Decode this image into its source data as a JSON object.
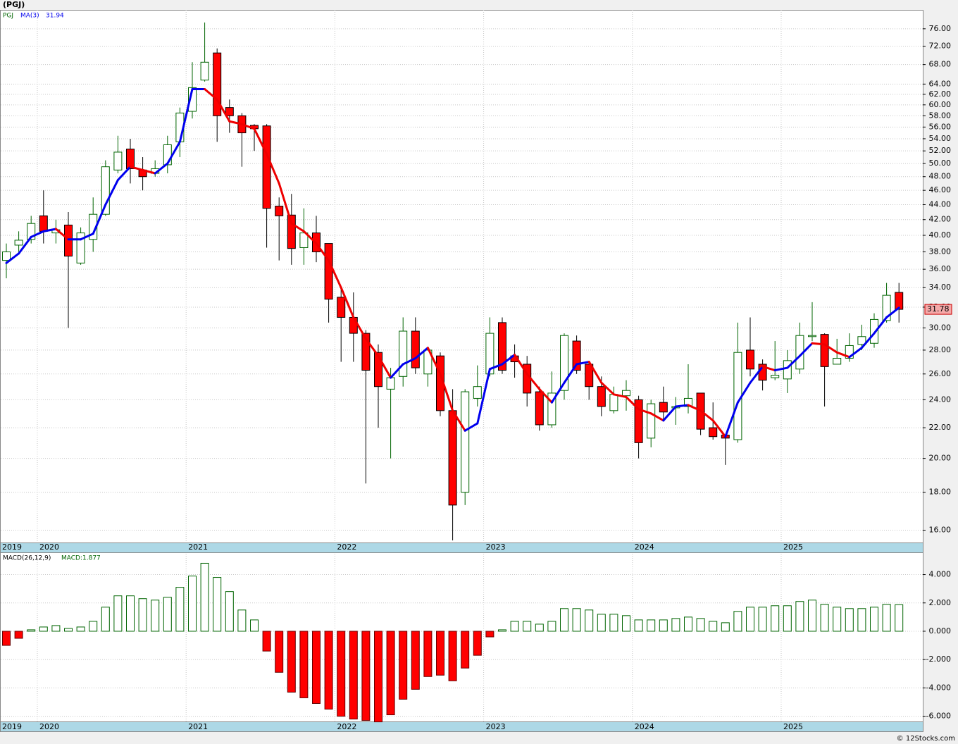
{
  "chart_data": [
    {
      "type": "candlestick",
      "title": "(PGJ)",
      "ticker": "PGJ",
      "categories": [
        "2019",
        null,
        null,
        "2020",
        null,
        null,
        null,
        null,
        null,
        null,
        null,
        null,
        null,
        null,
        null,
        "2021",
        null,
        null,
        null,
        null,
        null,
        null,
        null,
        null,
        null,
        null,
        null,
        "2022",
        null,
        null,
        null,
        null,
        null,
        null,
        null,
        null,
        null,
        null,
        null,
        "2023",
        null,
        null,
        null,
        null,
        null,
        null,
        null,
        null,
        null,
        null,
        null,
        "2024",
        null,
        null,
        null,
        null,
        null,
        null,
        null,
        null,
        null,
        null,
        null,
        "2025",
        null,
        null,
        null,
        null,
        null,
        null,
        null,
        null,
        null
      ],
      "open": [
        37,
        38.8,
        39.5,
        42.5,
        40.3,
        41.3,
        36.7,
        39.5,
        42.7,
        49,
        52.3,
        49,
        48.5,
        49.8,
        53.5,
        58.8,
        64.8,
        70.5,
        59.5,
        58,
        56.3,
        56.2,
        43.8,
        42.6,
        38.5,
        40.3,
        39,
        33,
        31,
        29.5,
        27.8,
        24.8,
        25.8,
        29.7,
        26,
        27.5,
        23.2,
        18,
        24.1,
        26,
        30.5,
        27.5,
        26.8,
        24.6,
        22.2,
        24.7,
        28.8,
        26.8,
        25,
        23.2,
        24.3,
        24,
        21.3,
        23.8,
        23.4,
        23.5,
        24.5,
        22,
        21.5,
        21.2,
        28,
        26.8,
        25.7,
        25.6,
        26.4,
        29.2,
        29.4,
        26.8,
        27.3,
        28.5,
        28.6,
        30.7,
        33.5
      ],
      "high": [
        39,
        40.5,
        42.5,
        46,
        42,
        43,
        41,
        45,
        50.5,
        54.5,
        54,
        51,
        50.5,
        54.5,
        59.5,
        68.5,
        77.5,
        71.5,
        61,
        58.5,
        56.5,
        56.5,
        45,
        45.5,
        43.5,
        42.5,
        39,
        34,
        33.5,
        29.8,
        28.5,
        26.5,
        31,
        31,
        28.2,
        27.8,
        24.8,
        24.8,
        26.7,
        31,
        31,
        28.5,
        27.5,
        25,
        26.2,
        29.5,
        29.3,
        27,
        25.8,
        25,
        25.5,
        24.3,
        24,
        25,
        24.2,
        26.8,
        24.5,
        23.8,
        21.5,
        30.5,
        31,
        27.2,
        28.8,
        28,
        30.5,
        32.5,
        29.5,
        29,
        29.5,
        30.3,
        31.4,
        34.5,
        34.5
      ],
      "low": [
        35,
        38,
        39,
        39,
        39,
        30,
        36.5,
        38,
        42.5,
        48.5,
        47,
        46,
        48,
        48.5,
        51,
        57.5,
        64.5,
        53.5,
        55,
        49.5,
        52,
        38.5,
        37,
        36.5,
        36.5,
        36.8,
        30.5,
        27,
        27,
        18.5,
        22,
        20,
        25,
        26,
        25,
        22.8,
        15.5,
        17.3,
        23.5,
        25.8,
        26,
        25.7,
        23.5,
        21.8,
        22,
        24,
        26,
        24,
        22.8,
        23,
        23.2,
        20,
        20.7,
        22.5,
        22.2,
        23,
        21.5,
        21.2,
        19.6,
        21,
        25.8,
        24.7,
        25.5,
        24.5,
        26,
        28.8,
        23.5,
        26.8,
        27,
        28,
        28.2,
        30.5,
        30.5
      ],
      "close": [
        38,
        39.4,
        41.5,
        40.5,
        40.7,
        37.5,
        40.3,
        42.7,
        49.5,
        51.8,
        49.2,
        48,
        49.2,
        53,
        58.5,
        63.3,
        68.5,
        58,
        58,
        55,
        55.7,
        43.5,
        42.5,
        38.4,
        40.3,
        38,
        32.8,
        31,
        29.5,
        26.3,
        25,
        25.7,
        29.7,
        26.5,
        28,
        23.2,
        17.3,
        24.6,
        25,
        29.5,
        26.3,
        27,
        24.5,
        22.2,
        24.5,
        29.3,
        26.3,
        25,
        23.5,
        24.4,
        24.7,
        21,
        23.7,
        23.1,
        23.5,
        24.1,
        21.9,
        21.4,
        21.3,
        27.8,
        26.4,
        25.5,
        25.9,
        27.1,
        29.3,
        29.3,
        26.6,
        27.3,
        28.4,
        29.2,
        30.8,
        33.2,
        31.78
      ],
      "up_color": "#006400",
      "down_color": "#ff0000",
      "ma": {
        "name": "MA(3)",
        "up_color": "#0000ee",
        "down_color": "#ee0000",
        "values": [
          36.7,
          37.8,
          39.8,
          40.5,
          40.8,
          39.5,
          39.5,
          40.2,
          44,
          47.5,
          49.5,
          49,
          48.5,
          50,
          53.5,
          63,
          63,
          61,
          57,
          56.5,
          55.7,
          51.5,
          47,
          41.5,
          40.5,
          39,
          37,
          34,
          31,
          29,
          27.5,
          25.7,
          26.8,
          27.3,
          28.2,
          26,
          23.2,
          21.8,
          22.3,
          26.4,
          26.8,
          27.6,
          26,
          24.8,
          23.8,
          25.3,
          26.8,
          27,
          25.3,
          24.4,
          24.2,
          23.3,
          23,
          22.5,
          23.5,
          23.6,
          23.2,
          22.5,
          21.4,
          23.8,
          25.3,
          26.6,
          26.3,
          26.5,
          27.5,
          28.6,
          28.5,
          27.8,
          27.4,
          28.2,
          29.5,
          31,
          31.94
        ]
      },
      "log": true,
      "ylim": [
        15.4,
        80.6
      ],
      "grid": true,
      "yticks": [
        {
          "value": 16,
          "label": "16.00"
        },
        {
          "value": 18,
          "label": "18.00"
        },
        {
          "value": 20,
          "label": "20.00"
        },
        {
          "value": 22,
          "label": "22.00"
        },
        {
          "value": 24,
          "label": "24.00"
        },
        {
          "value": 26,
          "label": "26.00"
        },
        {
          "value": 28,
          "label": "28.00"
        },
        {
          "value": 30,
          "label": "30.00"
        },
        {
          "value": 32,
          "label": "32.00"
        },
        {
          "value": 34,
          "label": "34.00"
        },
        {
          "value": 36,
          "label": "36.00"
        },
        {
          "value": 38,
          "label": "38.00"
        },
        {
          "value": 40,
          "label": "40.00"
        },
        {
          "value": 42,
          "label": "42.00"
        },
        {
          "value": 44,
          "label": "44.00"
        },
        {
          "value": 46,
          "label": "46.00"
        },
        {
          "value": 48,
          "label": "48.00"
        },
        {
          "value": 50,
          "label": "50.00"
        },
        {
          "value": 52,
          "label": "52.00"
        },
        {
          "value": 54,
          "label": "54.00"
        },
        {
          "value": 56,
          "label": "56.00"
        },
        {
          "value": 58,
          "label": "58.00"
        },
        {
          "value": 60,
          "label": "60.00"
        },
        {
          "value": 62,
          "label": "62.00"
        },
        {
          "value": 64,
          "label": "64.00"
        },
        {
          "value": 68,
          "label": "68.00"
        },
        {
          "value": 72,
          "label": "72.00"
        },
        {
          "value": 76,
          "label": "76.00"
        }
      ]
    },
    {
      "type": "bar",
      "name": "MACD(26,12,9)",
      "last_label": "MACD:1.877",
      "values": [
        -1.0,
        -0.5,
        0.1,
        0.3,
        0.4,
        0.2,
        0.3,
        0.7,
        1.7,
        2.5,
        2.5,
        2.3,
        2.2,
        2.4,
        3.1,
        3.9,
        4.8,
        3.8,
        2.8,
        1.5,
        0.8,
        -1.4,
        -2.9,
        -4.3,
        -4.7,
        -5.1,
        -5.5,
        -6.0,
        -6.2,
        -6.3,
        -6.4,
        -5.9,
        -4.8,
        -4.1,
        -3.2,
        -3.1,
        -3.5,
        -2.6,
        -1.7,
        -0.4,
        0.1,
        0.7,
        0.7,
        0.5,
        0.7,
        1.6,
        1.6,
        1.5,
        1.2,
        1.2,
        1.1,
        0.8,
        0.8,
        0.8,
        0.9,
        1.0,
        0.9,
        0.7,
        0.6,
        1.4,
        1.7,
        1.7,
        1.8,
        1.8,
        2.1,
        2.2,
        1.9,
        1.7,
        1.6,
        1.6,
        1.7,
        1.9,
        1.877
      ],
      "pos_color": "#006400",
      "neg_color": "#ff0000",
      "ylim": [
        -6.37,
        5.47
      ],
      "grid": true,
      "yticks": [
        {
          "value": 4,
          "label": "4.000"
        },
        {
          "value": 2,
          "label": "2.000"
        },
        {
          "value": 0,
          "label": "0.000"
        },
        {
          "value": -2,
          "label": "-2.000"
        },
        {
          "value": -4,
          "label": "-4.000"
        },
        {
          "value": -6,
          "label": "-6.000"
        }
      ]
    }
  ],
  "footer": "© 12Stocks.com"
}
